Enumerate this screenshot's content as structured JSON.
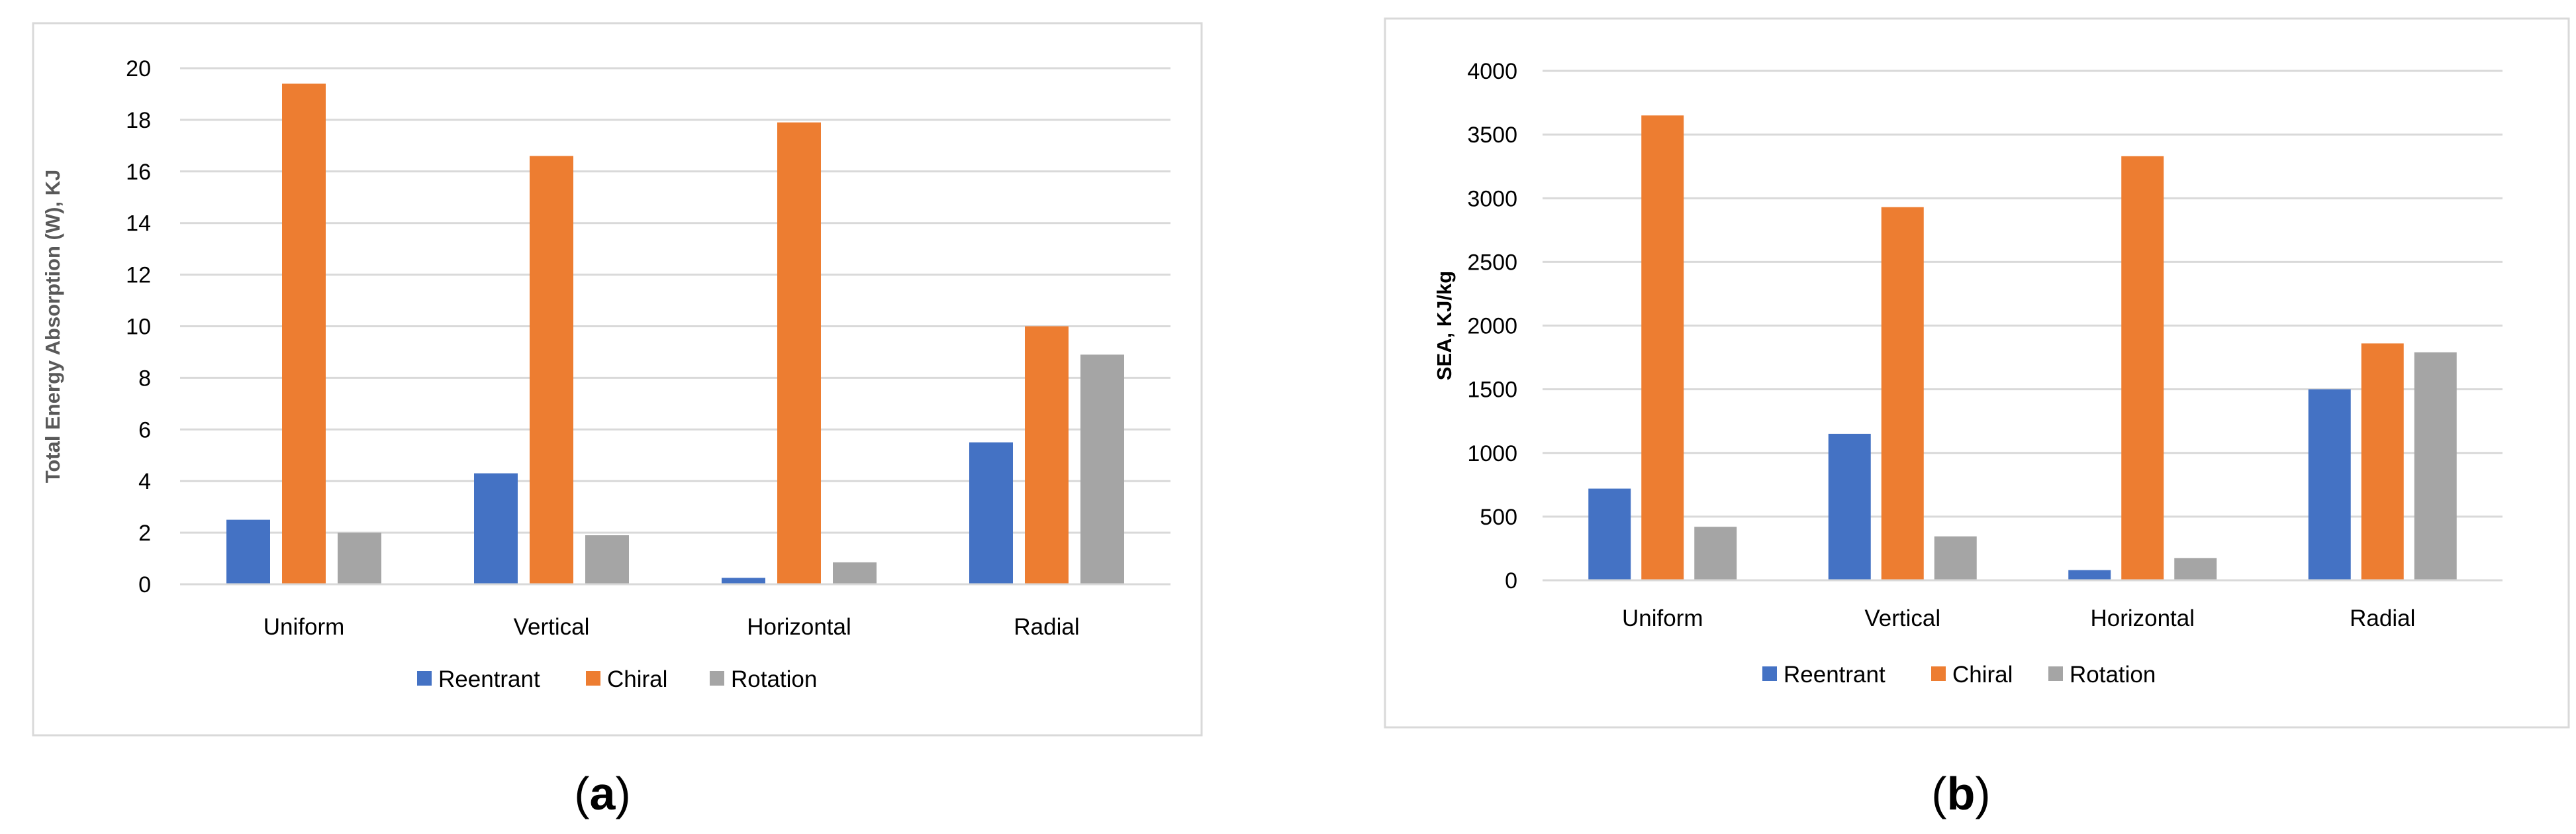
{
  "panels": [
    {
      "panel_label": "(a)",
      "panel_letter": "a"
    },
    {
      "panel_label": "(b)",
      "panel_letter": "b"
    }
  ],
  "chart_data": [
    {
      "type": "bar",
      "title": "",
      "xlabel": "",
      "ylabel": "Total Energy Absorption (W), KJ",
      "ylim": [
        0,
        20
      ],
      "yticks": [
        0,
        2,
        4,
        6,
        8,
        10,
        12,
        14,
        16,
        18,
        20
      ],
      "grid": true,
      "legend_position": "bottom",
      "categories": [
        "Uniform",
        "Vertical",
        "Horizontal",
        "Radial"
      ],
      "series": [
        {
          "name": "Reentrant",
          "color": "#4472C4",
          "values": [
            2.5,
            4.3,
            0.25,
            5.5
          ]
        },
        {
          "name": "Chiral",
          "color": "#ED7D31",
          "values": [
            19.4,
            16.6,
            17.9,
            10.0
          ]
        },
        {
          "name": "Rotation",
          "color": "#A5A5A5",
          "values": [
            2.0,
            1.9,
            0.85,
            8.9
          ]
        }
      ]
    },
    {
      "type": "bar",
      "title": "",
      "xlabel": "",
      "ylabel": "SEA, KJ/kg",
      "ylim": [
        0,
        4000
      ],
      "yticks": [
        0,
        500,
        1000,
        1500,
        2000,
        2500,
        3000,
        3500,
        4000
      ],
      "grid": true,
      "legend_position": "bottom",
      "categories": [
        "Uniform",
        "Vertical",
        "Horizontal",
        "Radial"
      ],
      "series": [
        {
          "name": "Reentrant",
          "color": "#4472C4",
          "values": [
            720,
            1150,
            80,
            1500
          ]
        },
        {
          "name": "Chiral",
          "color": "#ED7D31",
          "values": [
            3650,
            2930,
            3330,
            1860
          ]
        },
        {
          "name": "Rotation",
          "color": "#A5A5A5",
          "values": [
            420,
            345,
            175,
            1790
          ]
        }
      ]
    }
  ]
}
